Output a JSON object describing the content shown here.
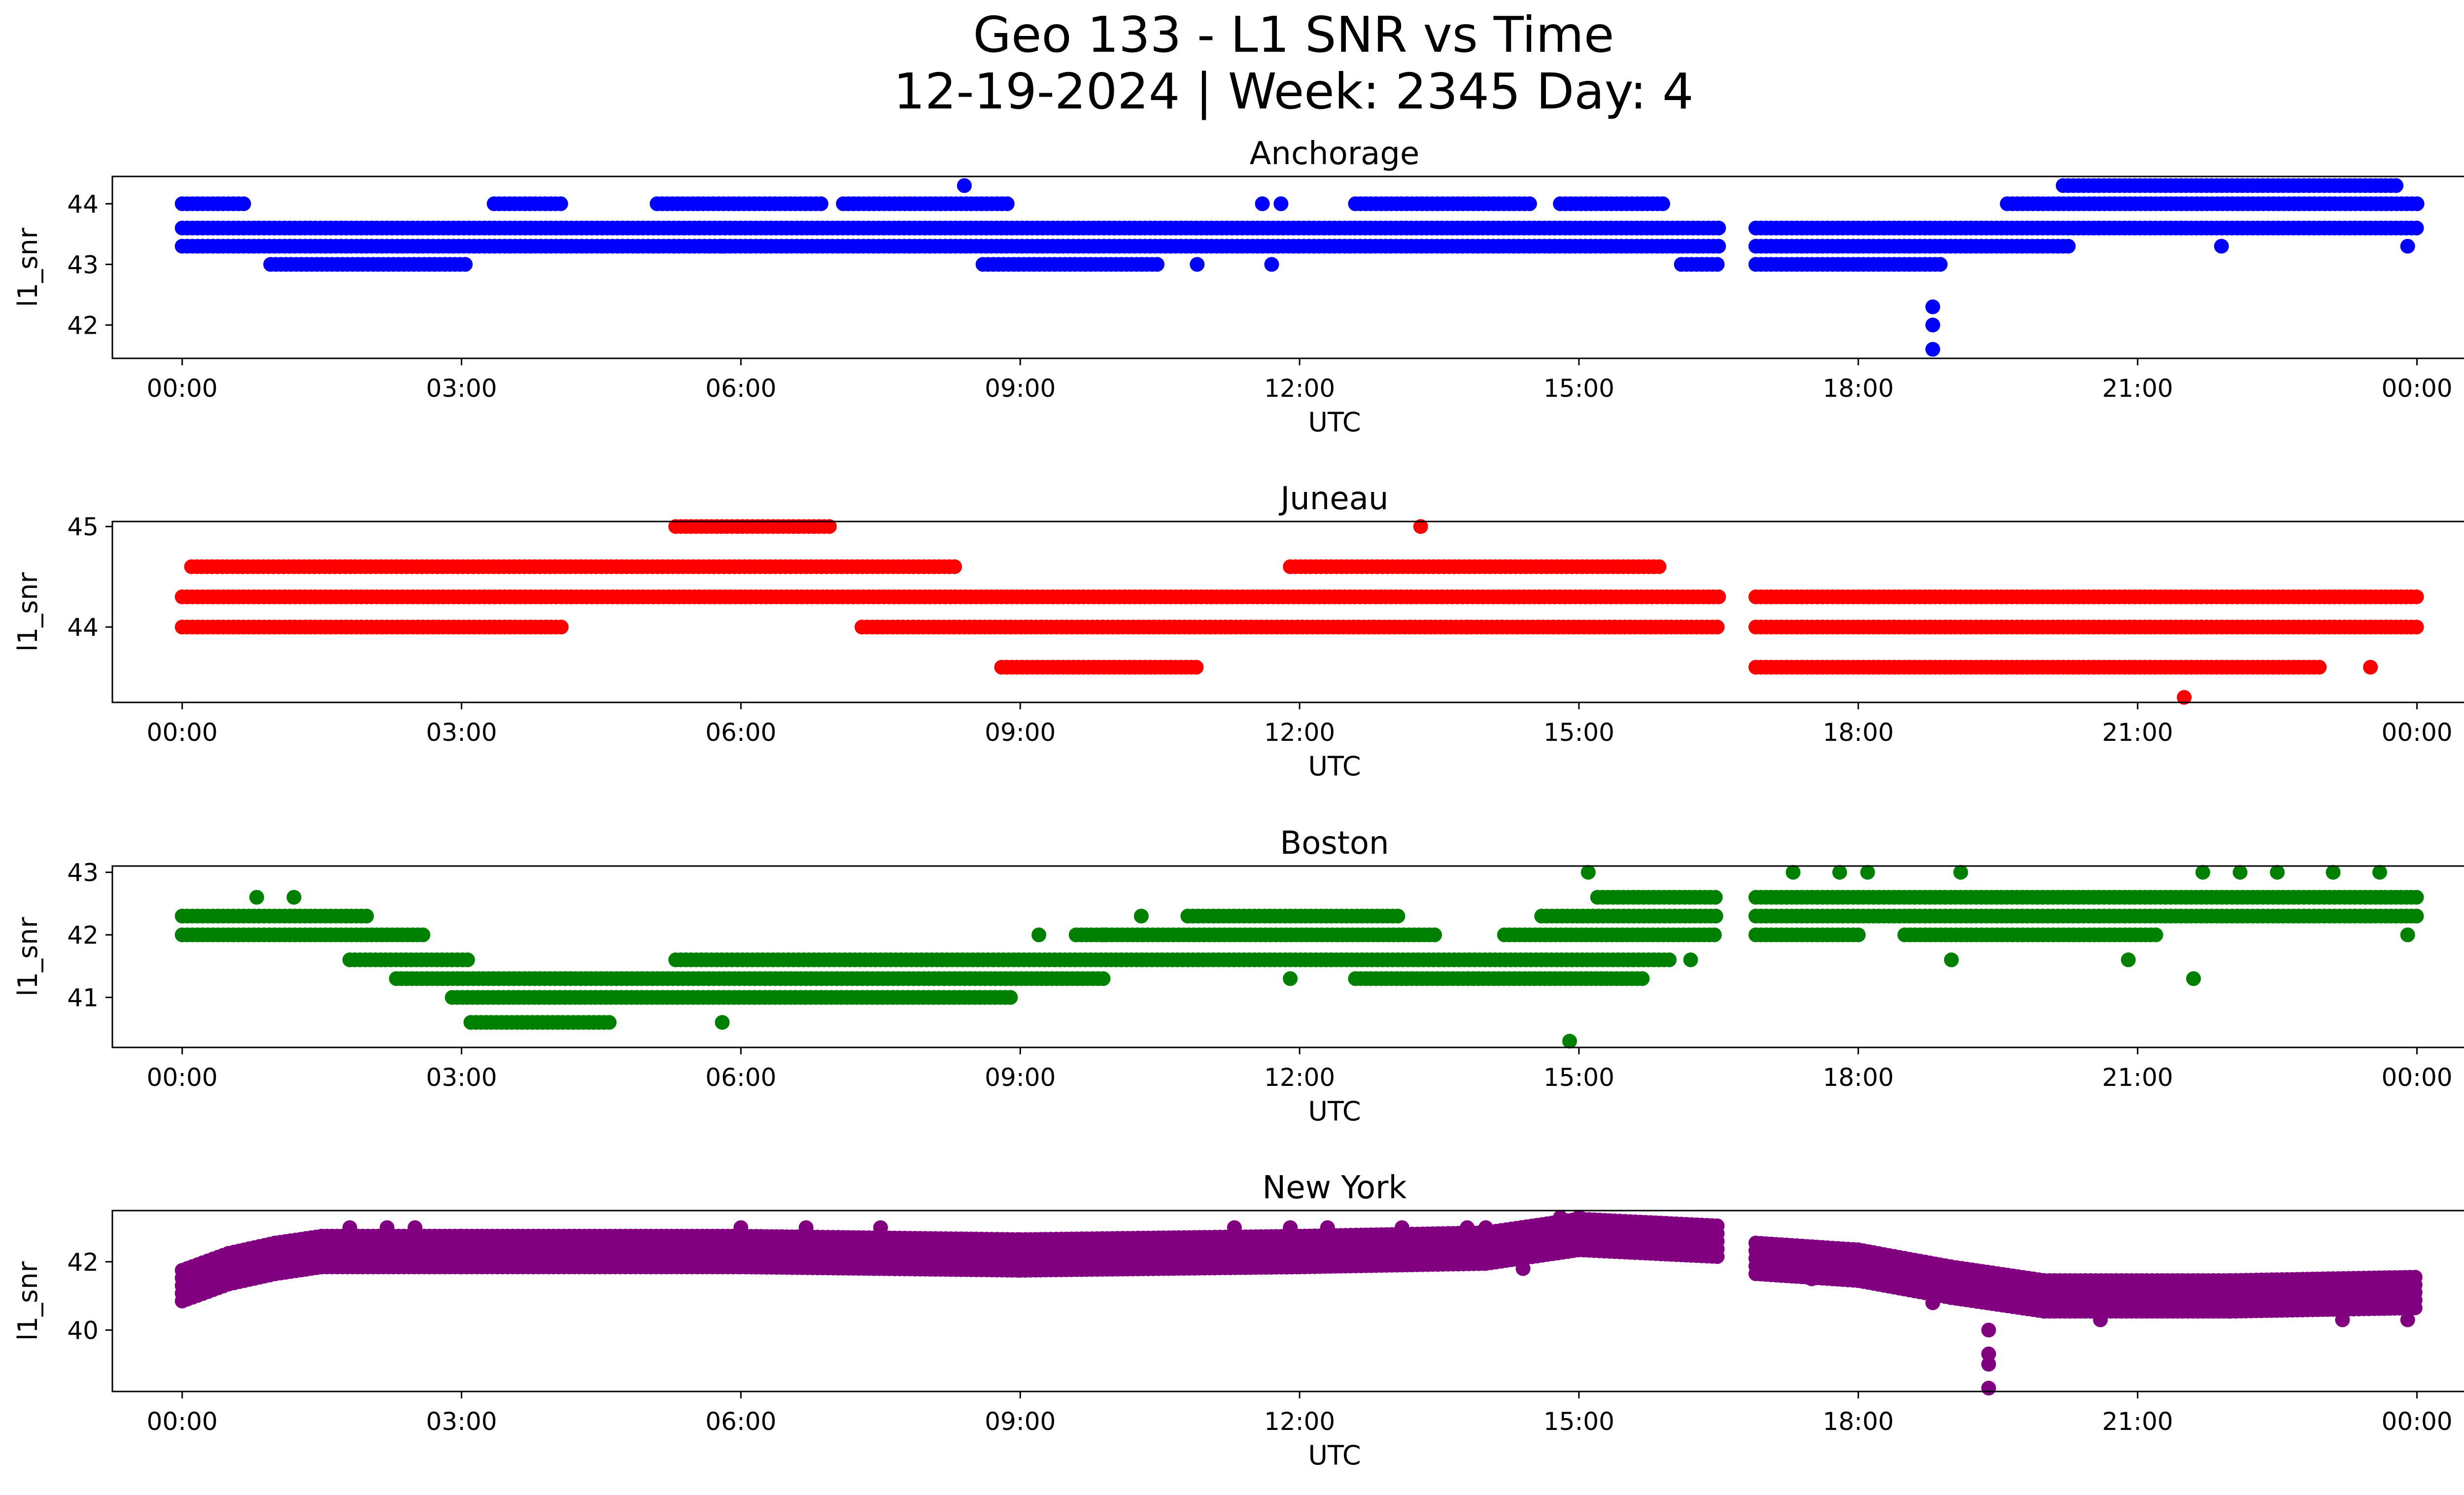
{
  "figure": {
    "title_line1": "Geo 133 - L1 SNR vs Time",
    "title_line2": "12-19-2024 | Week: 2345 Day: 4"
  },
  "chart_data": [
    {
      "type": "scatter",
      "title": "Anchorage",
      "xlabel": "UTC",
      "ylabel": "l1_snr",
      "color": "#0000ff",
      "x_unit": "hours",
      "xlim": [
        -0.75,
        25.5
      ],
      "ylim": [
        41.45,
        44.45
      ],
      "x_ticks": [
        0,
        3,
        6,
        9,
        12,
        15,
        18,
        21,
        24
      ],
      "x_tick_labels": [
        "00:00",
        "03:00",
        "06:00",
        "09:00",
        "12:00",
        "15:00",
        "18:00",
        "21:00",
        "00:00"
      ],
      "y_ticks": [
        42,
        43,
        44
      ],
      "y_tick_labels": [
        "42",
        "43",
        "44"
      ],
      "segments": [
        {
          "x_start": 0.0,
          "x_end": 16.5,
          "y": 43.6
        },
        {
          "x_start": 0.0,
          "x_end": 16.5,
          "y": 43.3
        },
        {
          "x_start": 0.0,
          "x_end": 0.7,
          "y": 44.0
        },
        {
          "x_start": 0.95,
          "x_end": 3.05,
          "y": 43.0
        },
        {
          "x_start": 3.35,
          "x_end": 4.1,
          "y": 44.0
        },
        {
          "x_start": 5.1,
          "x_end": 6.9,
          "y": 44.0
        },
        {
          "x_start": 7.1,
          "x_end": 8.9,
          "y": 44.0
        },
        {
          "x_start": 8.6,
          "x_end": 10.5,
          "y": 43.0
        },
        {
          "x_start": 12.6,
          "x_end": 14.5,
          "y": 44.0
        },
        {
          "x_start": 14.8,
          "x_end": 15.9,
          "y": 44.0
        },
        {
          "x_start": 16.1,
          "x_end": 16.5,
          "y": 43.0
        },
        {
          "x_start": 16.9,
          "x_end": 24.0,
          "y": 43.6
        },
        {
          "x_start": 16.9,
          "x_end": 20.3,
          "y": 43.3
        },
        {
          "x_start": 16.9,
          "x_end": 18.9,
          "y": 43.0
        },
        {
          "x_start": 19.6,
          "x_end": 24.0,
          "y": 44.0
        },
        {
          "x_start": 20.2,
          "x_end": 23.8,
          "y": 44.3
        }
      ],
      "points": [
        [
          5.8,
          43.3
        ],
        [
          8.4,
          44.3
        ],
        [
          10.9,
          43.0
        ],
        [
          11.6,
          44.0
        ],
        [
          11.8,
          44.0
        ],
        [
          11.7,
          43.0
        ],
        [
          18.8,
          42.3
        ],
        [
          18.8,
          42.0
        ],
        [
          18.8,
          41.6
        ],
        [
          21.9,
          43.3
        ],
        [
          23.9,
          43.3
        ]
      ]
    },
    {
      "type": "scatter",
      "title": "Juneau",
      "xlabel": "UTC",
      "ylabel": "l1_snr",
      "color": "#ff0000",
      "x_unit": "hours",
      "xlim": [
        -0.75,
        25.5
      ],
      "ylim": [
        43.25,
        45.05
      ],
      "x_ticks": [
        0,
        3,
        6,
        9,
        12,
        15,
        18,
        21,
        24
      ],
      "x_tick_labels": [
        "00:00",
        "03:00",
        "06:00",
        "09:00",
        "12:00",
        "15:00",
        "18:00",
        "21:00",
        "00:00"
      ],
      "y_ticks": [
        44,
        45
      ],
      "y_tick_labels": [
        "44",
        "45"
      ],
      "segments": [
        {
          "x_start": 0.0,
          "x_end": 16.5,
          "y": 44.3
        },
        {
          "x_start": 0.0,
          "x_end": 4.1,
          "y": 44.0
        },
        {
          "x_start": 0.1,
          "x_end": 8.3,
          "y": 44.6
        },
        {
          "x_start": 5.3,
          "x_end": 7.0,
          "y": 45.0
        },
        {
          "x_start": 7.3,
          "x_end": 16.5,
          "y": 44.0
        },
        {
          "x_start": 8.8,
          "x_end": 10.9,
          "y": 43.6
        },
        {
          "x_start": 11.9,
          "x_end": 15.9,
          "y": 44.6
        },
        {
          "x_start": 16.9,
          "x_end": 24.0,
          "y": 44.3
        },
        {
          "x_start": 16.9,
          "x_end": 24.0,
          "y": 44.0
        },
        {
          "x_start": 16.9,
          "x_end": 23.0,
          "y": 43.6
        }
      ],
      "points": [
        [
          13.3,
          45.0
        ],
        [
          21.5,
          43.3
        ],
        [
          23.5,
          43.6
        ],
        [
          12.8,
          44.0
        ],
        [
          13.8,
          44.0
        ]
      ]
    },
    {
      "type": "scatter",
      "title": "Boston",
      "xlabel": "UTC",
      "ylabel": "l1_snr",
      "color": "#008000",
      "x_unit": "hours",
      "xlim": [
        -0.75,
        25.5
      ],
      "ylim": [
        40.2,
        43.1
      ],
      "x_ticks": [
        0,
        3,
        6,
        9,
        12,
        15,
        18,
        21,
        24
      ],
      "x_tick_labels": [
        "00:00",
        "03:00",
        "06:00",
        "09:00",
        "12:00",
        "15:00",
        "18:00",
        "21:00",
        "00:00"
      ],
      "y_ticks": [
        41,
        42,
        43
      ],
      "y_tick_labels": [
        "41",
        "42",
        "43"
      ],
      "segments": [
        {
          "x_start": 0.0,
          "x_end": 2.0,
          "y": 42.3
        },
        {
          "x_start": 0.0,
          "x_end": 2.6,
          "y": 42.0
        },
        {
          "x_start": 1.8,
          "x_end": 3.1,
          "y": 41.6
        },
        {
          "x_start": 2.3,
          "x_end": 9.9,
          "y": 41.3
        },
        {
          "x_start": 2.9,
          "x_end": 8.9,
          "y": 41.0
        },
        {
          "x_start": 3.1,
          "x_end": 4.6,
          "y": 40.6
        },
        {
          "x_start": 5.3,
          "x_end": 16.0,
          "y": 41.6
        },
        {
          "x_start": 9.6,
          "x_end": 13.5,
          "y": 42.0
        },
        {
          "x_start": 10.8,
          "x_end": 13.1,
          "y": 42.3
        },
        {
          "x_start": 12.6,
          "x_end": 15.7,
          "y": 41.3
        },
        {
          "x_start": 14.2,
          "x_end": 16.5,
          "y": 42.0
        },
        {
          "x_start": 14.6,
          "x_end": 16.5,
          "y": 42.3
        },
        {
          "x_start": 15.2,
          "x_end": 16.5,
          "y": 42.6
        },
        {
          "x_start": 16.9,
          "x_end": 24.0,
          "y": 42.6
        },
        {
          "x_start": 16.9,
          "x_end": 24.0,
          "y": 42.3
        },
        {
          "x_start": 16.9,
          "x_end": 18.0,
          "y": 42.0
        },
        {
          "x_start": 18.5,
          "x_end": 21.2,
          "y": 42.0
        }
      ],
      "points": [
        [
          0.8,
          42.6
        ],
        [
          1.2,
          42.6
        ],
        [
          5.8,
          40.6
        ],
        [
          9.2,
          42.0
        ],
        [
          9.9,
          42.0
        ],
        [
          10.3,
          42.3
        ],
        [
          11.9,
          41.3
        ],
        [
          14.9,
          40.3
        ],
        [
          15.1,
          43.0
        ],
        [
          16.2,
          41.6
        ],
        [
          17.3,
          43.0
        ],
        [
          17.8,
          43.0
        ],
        [
          18.1,
          43.0
        ],
        [
          19.1,
          43.0
        ],
        [
          19.0,
          41.6
        ],
        [
          20.9,
          41.6
        ],
        [
          21.6,
          41.3
        ],
        [
          21.7,
          43.0
        ],
        [
          22.1,
          43.0
        ],
        [
          22.5,
          43.0
        ],
        [
          23.1,
          43.0
        ],
        [
          23.6,
          43.0
        ],
        [
          23.9,
          42.0
        ]
      ]
    },
    {
      "type": "scatter",
      "title": "New York",
      "xlabel": "UTC",
      "ylabel": "l1_snr",
      "color": "#800080",
      "x_unit": "hours",
      "xlim": [
        -0.75,
        25.5
      ],
      "ylim": [
        38.2,
        43.5
      ],
      "x_ticks": [
        0,
        3,
        6,
        9,
        12,
        15,
        18,
        21,
        24
      ],
      "x_tick_labels": [
        "00:00",
        "03:00",
        "06:00",
        "09:00",
        "12:00",
        "15:00",
        "18:00",
        "21:00",
        "00:00"
      ],
      "y_ticks": [
        40,
        42
      ],
      "y_tick_labels": [
        "40",
        "42"
      ],
      "band_series": [
        {
          "x": 0.0,
          "y": 41.3
        },
        {
          "x": 0.5,
          "y": 41.8
        },
        {
          "x": 1.0,
          "y": 42.1
        },
        {
          "x": 1.5,
          "y": 42.3
        },
        {
          "x": 3.0,
          "y": 42.3
        },
        {
          "x": 6.0,
          "y": 42.3
        },
        {
          "x": 9.0,
          "y": 42.2
        },
        {
          "x": 12.0,
          "y": 42.3
        },
        {
          "x": 14.0,
          "y": 42.4
        },
        {
          "x": 15.0,
          "y": 42.8
        },
        {
          "x": 16.5,
          "y": 42.6
        }
      ],
      "band_series_2": [
        {
          "x": 16.9,
          "y": 42.1
        },
        {
          "x": 18.0,
          "y": 41.9
        },
        {
          "x": 19.0,
          "y": 41.4
        },
        {
          "x": 20.0,
          "y": 41.0
        },
        {
          "x": 22.0,
          "y": 41.0
        },
        {
          "x": 24.0,
          "y": 41.1
        }
      ],
      "band_halfwidth": 0.45,
      "points": [
        [
          1.8,
          43.0
        ],
        [
          2.2,
          43.0
        ],
        [
          2.5,
          43.0
        ],
        [
          6.0,
          43.0
        ],
        [
          6.7,
          43.0
        ],
        [
          7.5,
          43.0
        ],
        [
          11.3,
          43.0
        ],
        [
          11.9,
          43.0
        ],
        [
          12.3,
          43.0
        ],
        [
          13.1,
          43.0
        ],
        [
          13.8,
          43.0
        ],
        [
          14.0,
          43.0
        ],
        [
          14.8,
          43.3
        ],
        [
          15.0,
          43.3
        ],
        [
          16.0,
          43.0
        ],
        [
          17.9,
          42.0
        ],
        [
          19.4,
          40.0
        ],
        [
          19.4,
          39.3
        ],
        [
          19.4,
          39.0
        ],
        [
          19.4,
          38.3
        ],
        [
          20.6,
          40.3
        ],
        [
          23.2,
          40.3
        ],
        [
          23.9,
          40.3
        ],
        [
          23.9,
          40.6
        ],
        [
          14.4,
          41.8
        ],
        [
          17.5,
          41.5
        ],
        [
          18.8,
          40.8
        ]
      ]
    }
  ]
}
